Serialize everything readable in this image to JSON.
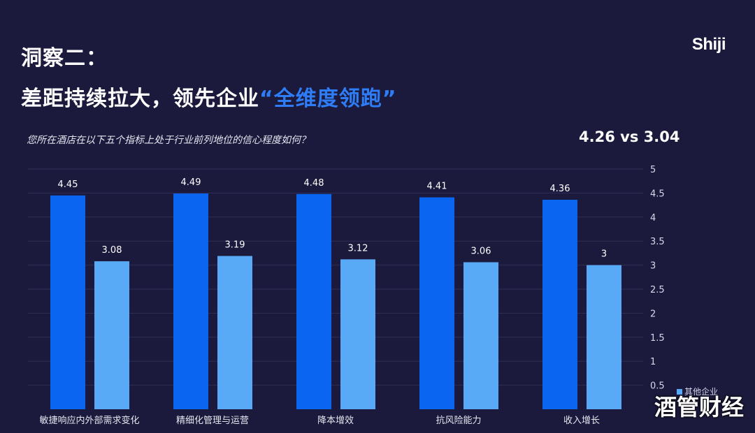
{
  "header": {
    "title_line1": "洞察二：",
    "title_line2_pre": "差距持续拉大，领先企业",
    "title_line2_highlight": "“全维度领跑”",
    "logo": "Shiji"
  },
  "question": "您所在酒店在以下五个指标上处于行业前列地位的信心程度如何？",
  "comparison": "4.26 vs 3.04",
  "watermark": "酒管财经",
  "colors": {
    "series1": "#0a66f0",
    "series2": "#58aaf6",
    "background": "#1b1a3c"
  },
  "chart_data": {
    "type": "bar",
    "categories": [
      "敏捷响应内外部需求变化",
      "精细化管理与运营",
      "降本增效",
      "抗风险能力",
      "收入增长"
    ],
    "series": [
      {
        "values": [
          4.45,
          4.49,
          4.48,
          4.41,
          4.36
        ]
      },
      {
        "name": "其他企业",
        "values": [
          3.08,
          3.19,
          3.12,
          3.06,
          3
        ]
      }
    ],
    "ylim": [
      0,
      5
    ],
    "yticks": [
      "0.5",
      "1",
      "1.5",
      "2",
      "2.5",
      "3",
      "3.5",
      "4",
      "4.5",
      "5"
    ],
    "y_axis_position": "right",
    "grid": true,
    "legend": "bottom-right"
  }
}
